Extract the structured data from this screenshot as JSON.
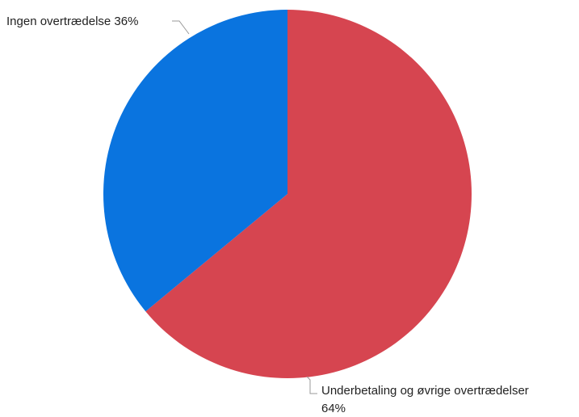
{
  "chart_data": {
    "type": "pie",
    "slices": [
      {
        "label": "Underbetaling og øvrige overtrædelser",
        "value": 64,
        "value_label": "64%",
        "color": "#d64550"
      },
      {
        "label": "Ingen overtrædelse",
        "value": 36,
        "value_label": "36%",
        "color": "#0a74df"
      }
    ],
    "title": "",
    "legend": "none",
    "start_angle": "12 o'clock",
    "direction": "clockwise"
  },
  "labels": {
    "ingen": "Ingen overtrædelse 36%",
    "under_line1": "Underbetaling og øvrige overtrædelser",
    "under_line2": "64%"
  }
}
